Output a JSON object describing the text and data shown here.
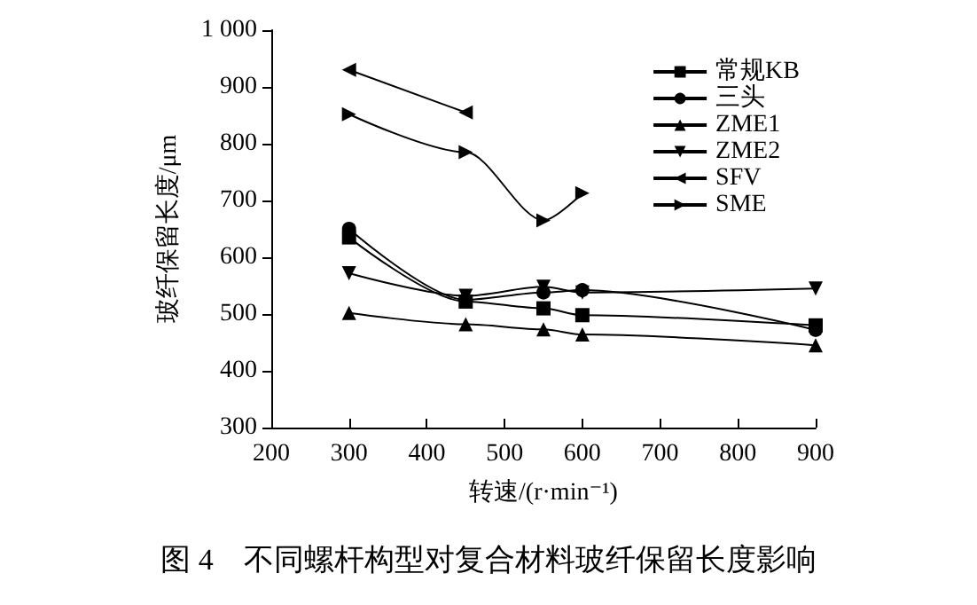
{
  "chart_data": {
    "type": "line",
    "title": "图 4　不同螺杆构型对复合材料玻纤保留长度影响",
    "xlabel": "转速/(r·min⁻¹)",
    "ylabel": "玻纤保留长度/μm",
    "xlim": [
      200,
      900
    ],
    "xticks": [
      200,
      300,
      400,
      500,
      600,
      700,
      800,
      900
    ],
    "ylim": [
      300,
      1000
    ],
    "yticks": [
      300,
      400,
      500,
      600,
      700,
      800,
      900,
      {
        "value": 1000,
        "label": "1 000"
      }
    ],
    "grid": false,
    "legend": "top right",
    "series": [
      {
        "name": "常规KB",
        "color": "#000000",
        "marker": "square",
        "x": [
          300,
          450,
          550,
          600,
          900
        ],
        "values": [
          635,
          522,
          510,
          498,
          480
        ]
      },
      {
        "name": "三头",
        "color": "#000000",
        "marker": "circle",
        "x": [
          300,
          450,
          550,
          600,
          900
        ],
        "values": [
          650,
          525,
          538,
          542,
          472
        ]
      },
      {
        "name": "ZME1",
        "color": "#000000",
        "marker": "triangle",
        "x": [
          300,
          450,
          550,
          600,
          900
        ],
        "values": [
          502,
          482,
          473,
          464,
          445
        ]
      },
      {
        "name": "ZME2",
        "color": "#000000",
        "marker": "triangle-down",
        "x": [
          300,
          450,
          550,
          600,
          900
        ],
        "values": [
          572,
          532,
          548,
          538,
          545
        ]
      },
      {
        "name": "SFV",
        "color": "#000000",
        "marker": "triangle-left",
        "x": [
          300,
          450
        ],
        "values": [
          930,
          855
        ]
      },
      {
        "name": "SME",
        "color": "#000000",
        "marker": "triangle-right",
        "x": [
          300,
          450,
          550,
          600
        ],
        "values": [
          852,
          785,
          665,
          713
        ]
      }
    ]
  }
}
